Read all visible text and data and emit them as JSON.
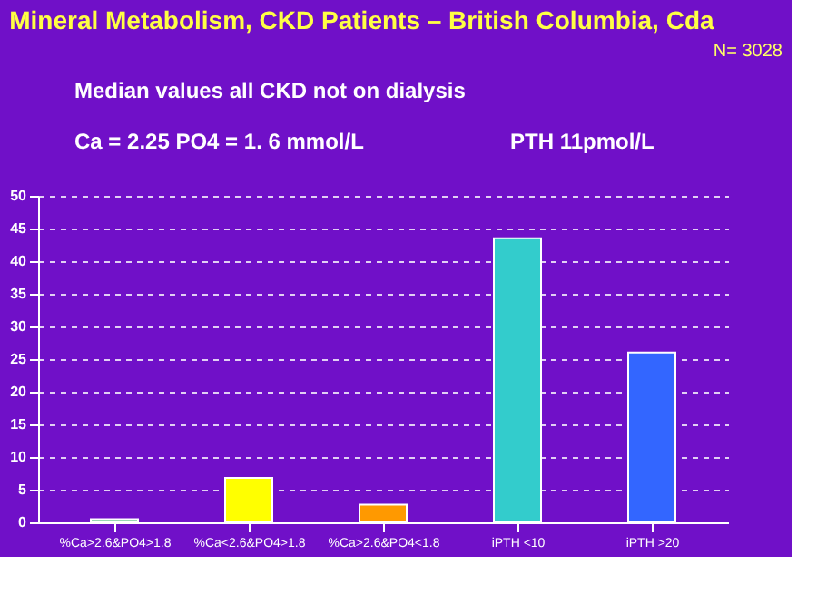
{
  "chart_data": {
    "type": "bar",
    "title": "Mineral Metabolism, CKD Patients – British Columbia, Cda",
    "annotations": [
      "N= 3028",
      "Median values all CKD not on dialysis",
      "Ca = 2.25   PO4 = 1. 6  mmol/L",
      "PTH  11pmol/L"
    ],
    "categories": [
      "%Ca>2.6&PO4>1.8",
      "%Ca<2.6&PO4>1.8",
      "%Ca>2.6&PO4<1.8",
      "iPTH <10",
      "iPTH >20"
    ],
    "values": [
      0.5,
      6.8,
      2.7,
      43.5,
      26
    ],
    "colors": [
      "#33aa66",
      "#ffff00",
      "#ff9900",
      "#33cccc",
      "#3366ff"
    ],
    "ylim": [
      0,
      50
    ],
    "yticks": [
      0,
      5,
      10,
      15,
      20,
      25,
      30,
      35,
      40,
      45,
      50
    ],
    "grid": "y"
  }
}
